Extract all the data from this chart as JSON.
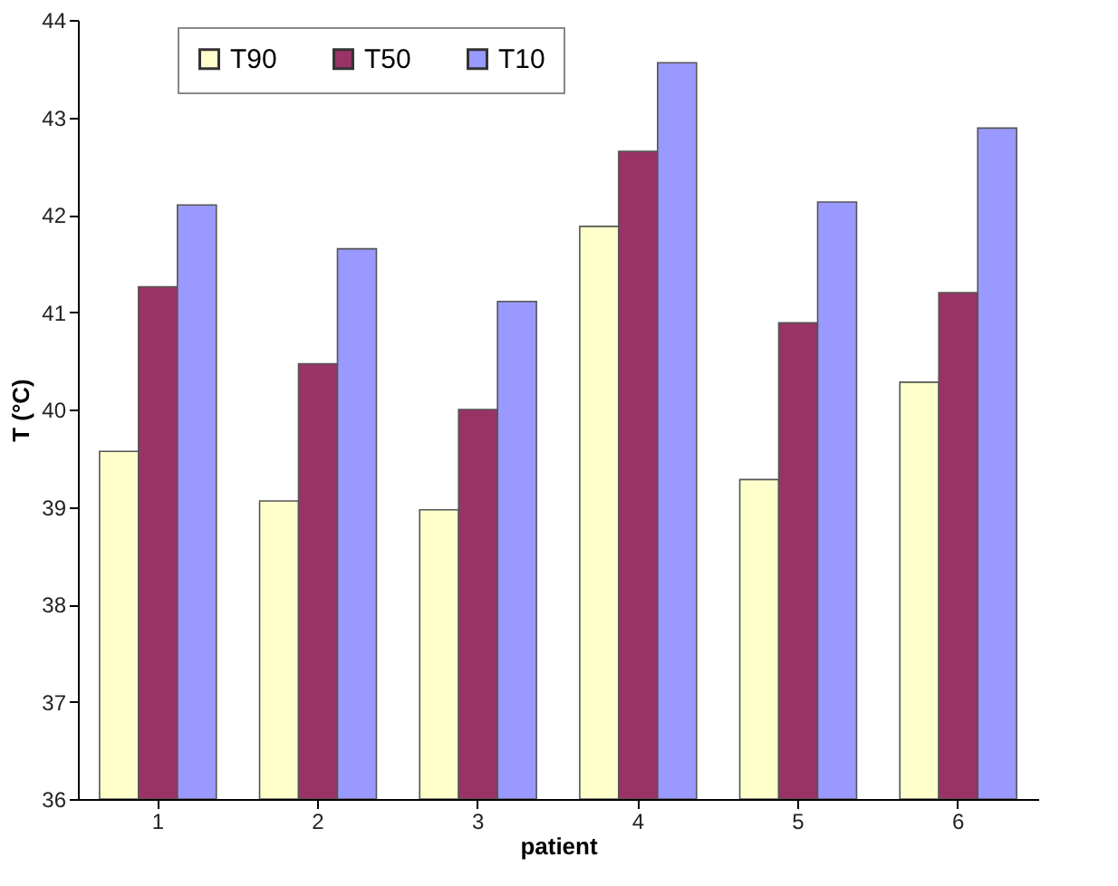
{
  "chart_data": {
    "type": "bar",
    "xlabel": "patient",
    "ylabel": "T (°C)",
    "categories": [
      "1",
      "2",
      "3",
      "4",
      "5",
      "6"
    ],
    "series": [
      {
        "name": "T90",
        "color": "#ffffcc",
        "values": [
          39.57,
          39.06,
          38.97,
          41.88,
          39.28,
          40.28
        ]
      },
      {
        "name": "T50",
        "color": "#993366",
        "values": [
          41.26,
          40.47,
          40.0,
          42.65,
          40.89,
          41.2
        ]
      },
      {
        "name": "T10",
        "color": "#9999ff",
        "values": [
          42.1,
          41.65,
          41.11,
          43.56,
          42.13,
          42.89
        ]
      }
    ],
    "ylim": [
      36,
      44
    ],
    "yticks": [
      36,
      37,
      38,
      39,
      40,
      41,
      42,
      43,
      44
    ],
    "grid": false,
    "legend": "top"
  }
}
